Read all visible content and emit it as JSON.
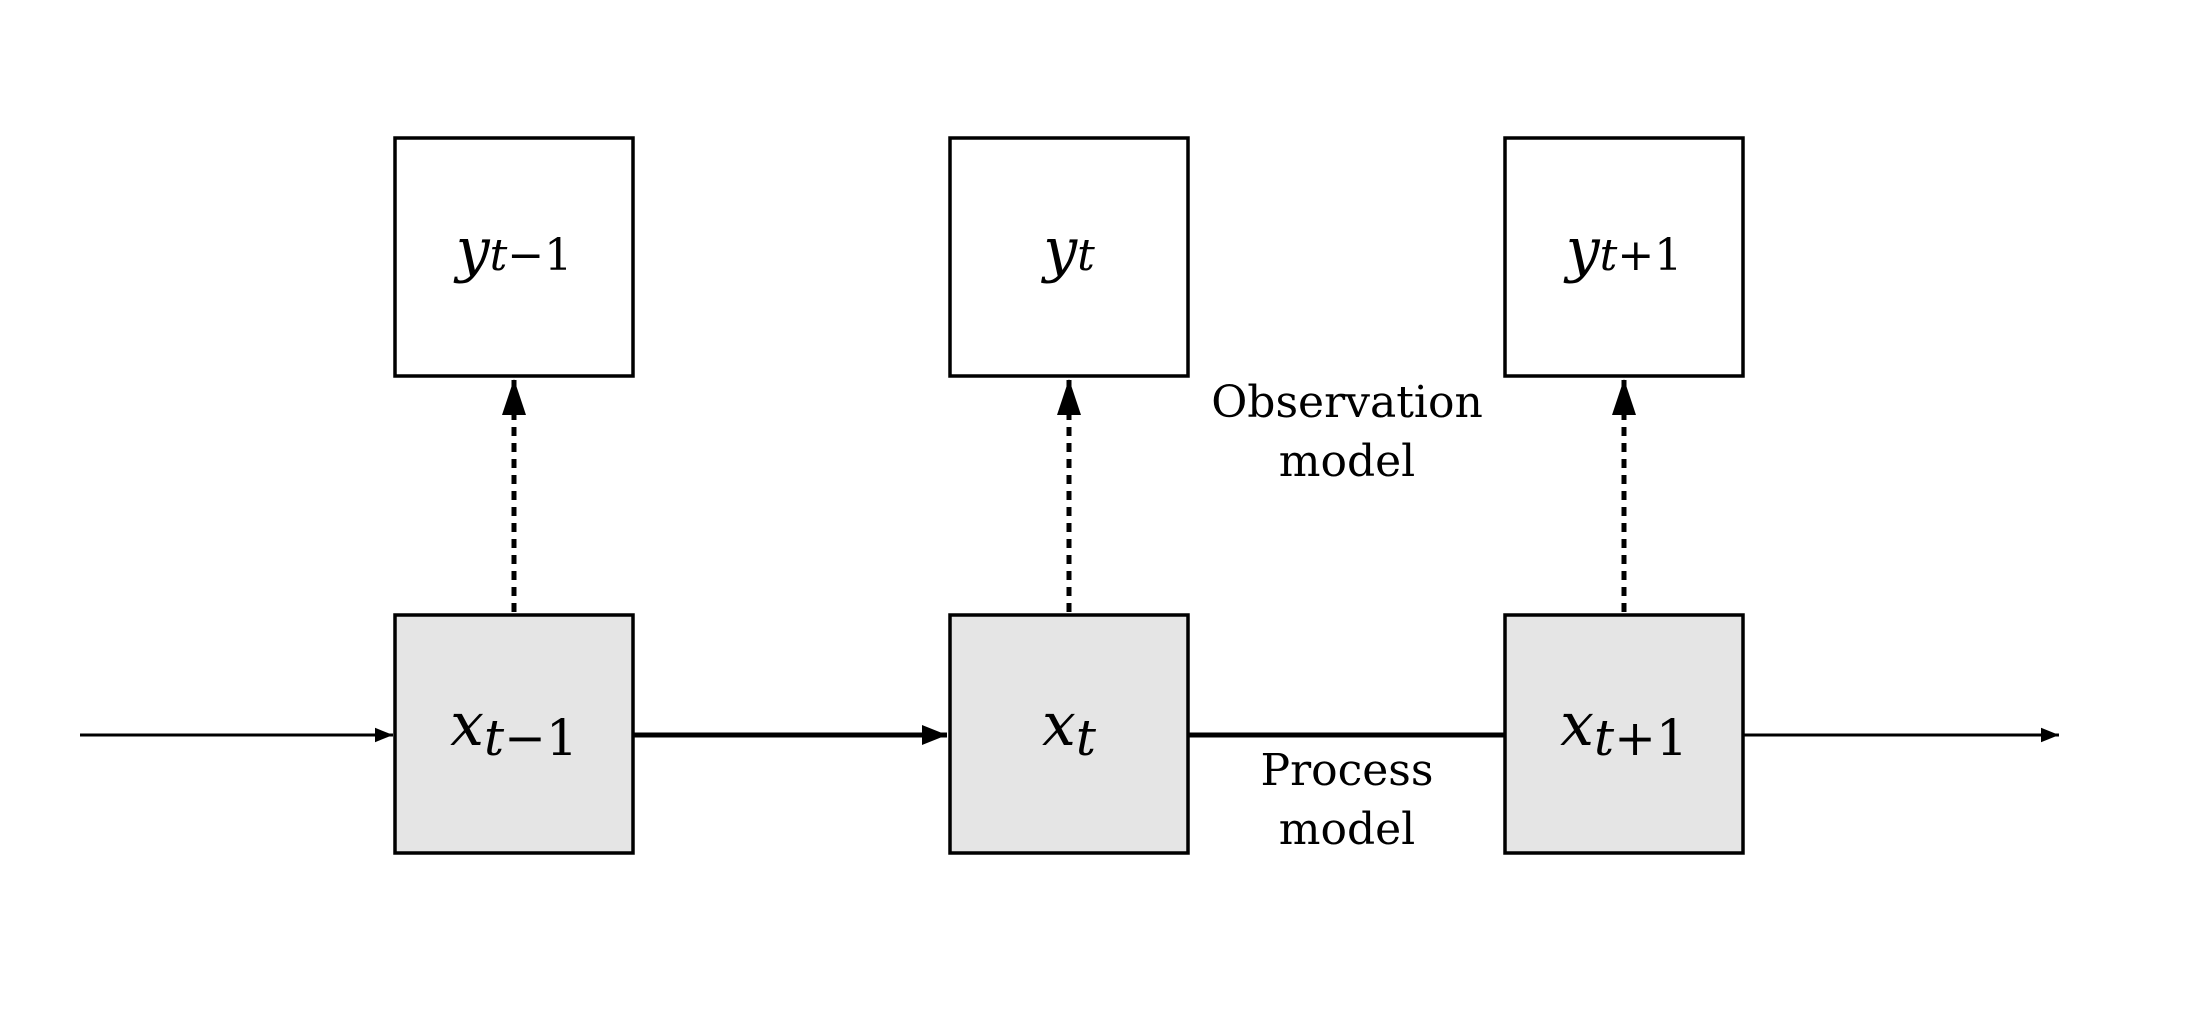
{
  "diagram": {
    "observations": [
      {
        "var": "y",
        "sub_var": "t",
        "sub_rest": "−1"
      },
      {
        "var": "y",
        "sub_var": "t",
        "sub_rest": ""
      },
      {
        "var": "y",
        "sub_var": "t",
        "sub_rest": "+1"
      }
    ],
    "states": [
      {
        "var": "x",
        "sub_var": "t",
        "sub_rest": "−1"
      },
      {
        "var": "x",
        "sub_var": "t",
        "sub_rest": ""
      },
      {
        "var": "x",
        "sub_var": "t",
        "sub_rest": "+1"
      }
    ],
    "observation_label": [
      "Observation",
      "model"
    ],
    "process_label": [
      "Process",
      "model"
    ],
    "colors": {
      "state_fill": "#e5e5e5",
      "observation_fill": "#ffffff",
      "stroke": "#000000"
    }
  }
}
